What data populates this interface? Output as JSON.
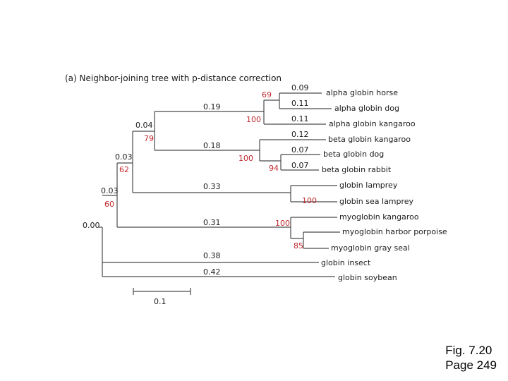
{
  "title": "(a) Neighbor-joining tree with p-distance correction",
  "scale_label": "0.1",
  "caption": {
    "fig": "Fig. 7.20",
    "page": "Page 249"
  },
  "leaves": [
    "alpha globin horse",
    "alpha globin dog",
    "alpha globin kangaroo",
    "beta globin kangaroo",
    "beta globin dog",
    "beta globin rabbit",
    "globin lamprey",
    "globin sea lamprey",
    "myoglobin kangaroo",
    "myoglobin harbor porpoise",
    "myoglobin gray seal",
    "globin insect",
    "globin soybean"
  ],
  "branch_lengths": {
    "root": "0.00",
    "n1": "0.03",
    "n2": "0.03",
    "n3": "0.04",
    "alpha_clade": "0.19",
    "beta_clade": "0.18",
    "lamprey_clade": "0.33",
    "myoglobin_clade": "0.31",
    "insect": "0.38",
    "soybean": "0.42",
    "alpha_horse": "0.09",
    "alpha_dog": "0.11",
    "alpha_kangaroo": "0.11",
    "beta_kangaroo": "0.12",
    "beta_dog": "0.07",
    "beta_rabbit": "0.07"
  },
  "bootstrap": {
    "n1": "60",
    "n2": "62",
    "n3": "79",
    "alpha_clade": "100",
    "alpha_horse_dog": "69",
    "beta_clade": "100",
    "beta_dog_rabbit": "94",
    "lamprey_clade": "100",
    "myoglobin_clade": "100",
    "myoglobin_porpoise_seal": "85"
  },
  "colors": {
    "line": "#4a4a4a",
    "bootstrap": "#c0282d",
    "text": "#1a1a1a"
  }
}
